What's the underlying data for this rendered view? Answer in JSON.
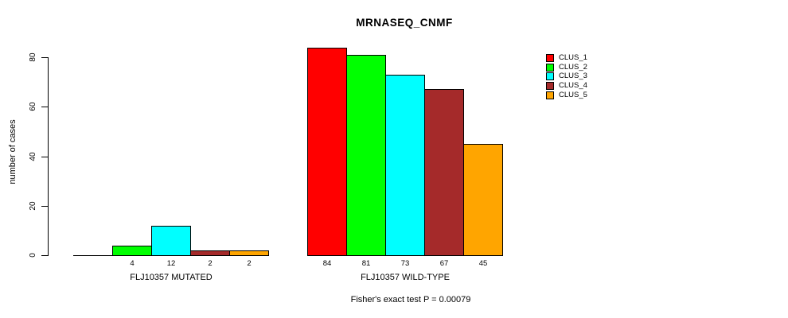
{
  "title": "MRNASEQ_CNMF",
  "footnote": "Fisher's exact test P = 0.00079",
  "y_axis": {
    "label": "number of cases",
    "ticks": [
      0,
      20,
      40,
      60,
      80
    ]
  },
  "legend": {
    "items": [
      {
        "label": "CLUS_1",
        "color": "#FF0000"
      },
      {
        "label": "CLUS_2",
        "color": "#00FF00"
      },
      {
        "label": "CLUS_3",
        "color": "#00FFFF"
      },
      {
        "label": "CLUS_4",
        "color": "#A52A2A"
      },
      {
        "label": "CLUS_5",
        "color": "#FFA500"
      }
    ]
  },
  "chart_data": {
    "type": "bar",
    "title": "MRNASEQ_CNMF",
    "xlabel": "",
    "ylabel": "number of cases",
    "ylim": [
      0,
      84
    ],
    "yticks": [
      0,
      20,
      40,
      60,
      80
    ],
    "grid": false,
    "legend_position": "top-right",
    "categories": [
      "FLJ10357 MUTATED",
      "FLJ10357 WILD-TYPE"
    ],
    "series": [
      {
        "name": "CLUS_1",
        "color": "#FF0000",
        "values": [
          0,
          84
        ]
      },
      {
        "name": "CLUS_2",
        "color": "#00FF00",
        "values": [
          4,
          81
        ]
      },
      {
        "name": "CLUS_3",
        "color": "#00FFFF",
        "values": [
          12,
          73
        ]
      },
      {
        "name": "CLUS_4",
        "color": "#A52A2A",
        "values": [
          2,
          67
        ]
      },
      {
        "name": "CLUS_5",
        "color": "#FFA500",
        "values": [
          2,
          45
        ]
      }
    ],
    "bar_labels": [
      [
        "",
        "4",
        "12",
        "2",
        "2"
      ],
      [
        "84",
        "81",
        "73",
        "67",
        "45"
      ]
    ],
    "annotation": "Fisher's exact test P = 0.00079"
  }
}
